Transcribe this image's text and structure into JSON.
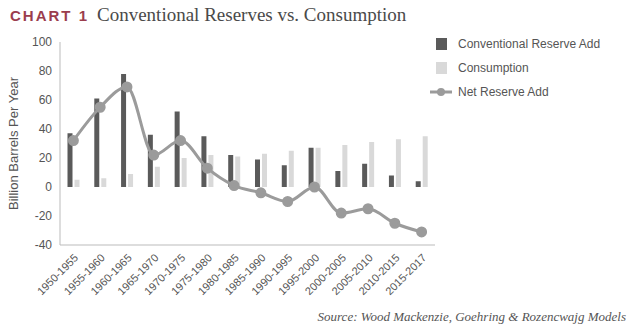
{
  "chart_data": {
    "type": "bar",
    "title": "CHART 1 Conventional Reserves vs. Consumption",
    "y_label": "Billion Barrels Per Year",
    "annotations": [
      "Source: Wood Mackenzie, Goehring & Rozencwajg Models"
    ],
    "categories": [
      "1950-1955",
      "1955-1960",
      "1960-1965",
      "1965-1970",
      "1970-1975",
      "1975-1980",
      "1980-1985",
      "1985-1990",
      "1990-1995",
      "1995-2000",
      "2000-2005",
      "2005-2010",
      "2010-2015",
      "2015-2017"
    ],
    "series": [
      {
        "name": "Conventional Reserve Add",
        "type": "bar",
        "color": "#5a5a5a",
        "values": [
          37,
          61,
          78,
          36,
          52,
          35,
          22,
          19,
          15,
          27,
          11,
          16,
          8,
          4
        ]
      },
      {
        "name": "Consumption",
        "type": "bar",
        "color": "#d9d9d9",
        "values": [
          5,
          6,
          9,
          14,
          20,
          22,
          21,
          23,
          25,
          27,
          29,
          31,
          33,
          35
        ]
      },
      {
        "name": "Net Reserve Add",
        "type": "line",
        "color": "#9b9b9b",
        "marker": "circle",
        "line_style": "solid",
        "values": [
          32,
          55,
          69,
          22,
          32,
          13,
          1,
          -4,
          -10,
          0,
          -18,
          -15,
          -25,
          -31
        ]
      }
    ],
    "ylim": [
      -40,
      100
    ],
    "yticks": [
      -40,
      -20,
      0,
      20,
      40,
      60,
      80,
      100
    ],
    "legend": "top-right",
    "grid": false
  }
}
